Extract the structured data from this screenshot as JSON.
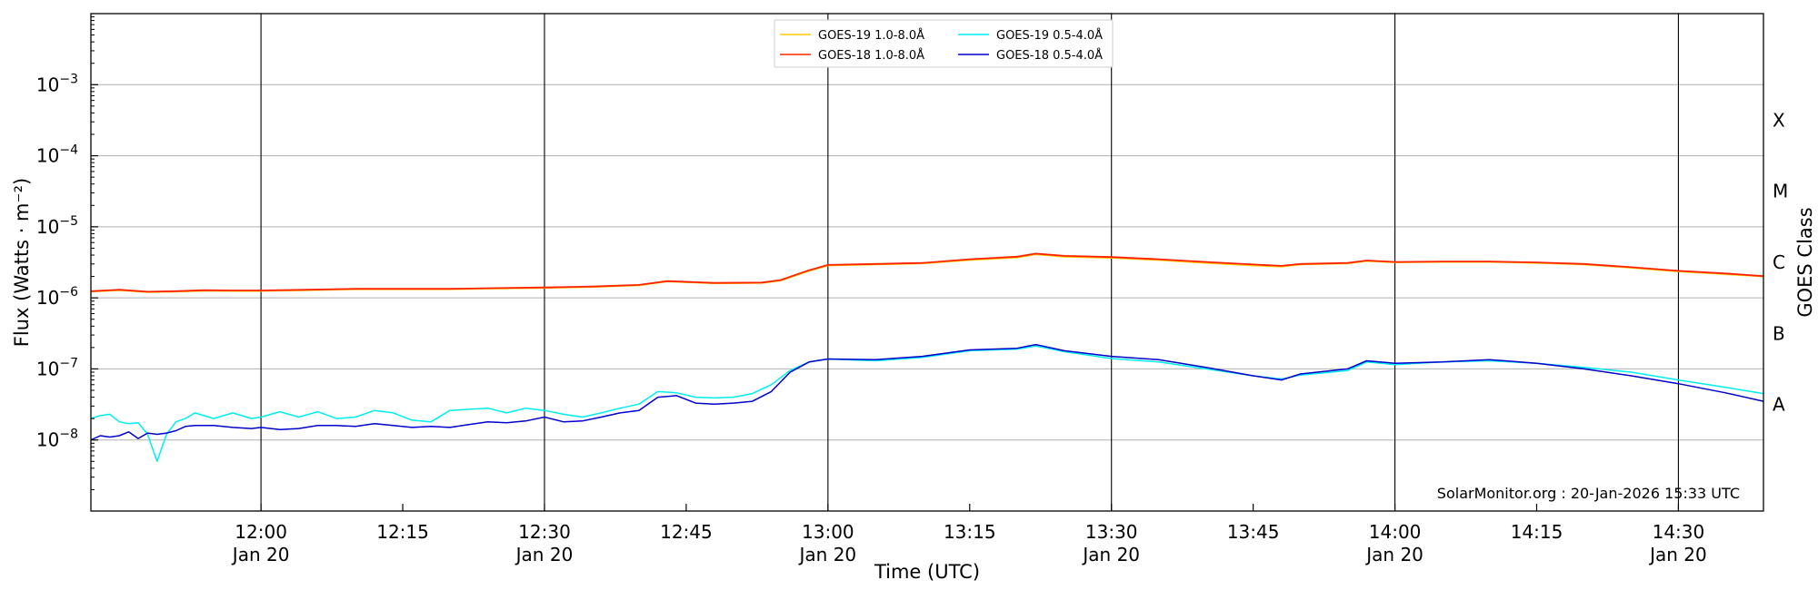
{
  "chart_data": {
    "type": "line",
    "xlabel": "Time (UTC)",
    "ylabel": "Flux (Watts · m⁻²)",
    "y2label": "GOES Class",
    "y_scale": "log",
    "ylim": [
      1e-09,
      0.01
    ],
    "xlim": [
      "2026-01-20 11:42",
      "2026-01-20 14:39"
    ],
    "grid": "horizontal",
    "legend_position": "top-center",
    "credit": "SolarMonitor.org : 20-Jan-2026 15:33 UTC",
    "y_ticks": [
      {
        "value": 1e-08,
        "base": "10",
        "exp": "−8"
      },
      {
        "value": 1e-07,
        "base": "10",
        "exp": "−7"
      },
      {
        "value": 1e-06,
        "base": "10",
        "exp": "−6"
      },
      {
        "value": 1e-05,
        "base": "10",
        "exp": "−5"
      },
      {
        "value": 0.0001,
        "base": "10",
        "exp": "−4"
      },
      {
        "value": 0.001,
        "base": "10",
        "exp": "−3"
      }
    ],
    "x_ticks": [
      {
        "time": "12:00",
        "line1": "12:00",
        "line2": "Jan 20",
        "major": true
      },
      {
        "time": "12:15",
        "line1": "12:15",
        "line2": "",
        "major": false
      },
      {
        "time": "12:30",
        "line1": "12:30",
        "line2": "Jan 20",
        "major": true
      },
      {
        "time": "12:45",
        "line1": "12:45",
        "line2": "",
        "major": false
      },
      {
        "time": "13:00",
        "line1": "13:00",
        "line2": "Jan 20",
        "major": true
      },
      {
        "time": "13:15",
        "line1": "13:15",
        "line2": "",
        "major": false
      },
      {
        "time": "13:30",
        "line1": "13:30",
        "line2": "Jan 20",
        "major": true
      },
      {
        "time": "13:45",
        "line1": "13:45",
        "line2": "",
        "major": false
      },
      {
        "time": "14:00",
        "line1": "14:00",
        "line2": "Jan 20",
        "major": true
      },
      {
        "time": "14:15",
        "line1": "14:15",
        "line2": "",
        "major": false
      },
      {
        "time": "14:30",
        "line1": "14:30",
        "line2": "Jan 20",
        "major": true
      }
    ],
    "goes_classes": [
      {
        "label": "X",
        "flux": 0.0001
      },
      {
        "label": "M",
        "flux": 1e-05
      },
      {
        "label": "C",
        "flux": 1e-06
      },
      {
        "label": "B",
        "flux": 1e-07
      },
      {
        "label": "A",
        "flux": 1e-08
      }
    ],
    "series": [
      {
        "name": "GOES-19 1.0-8.0Å",
        "color": "#ffcc00",
        "x": [
          "11:42",
          "11:45",
          "11:48",
          "11:51",
          "11:54",
          "11:57",
          "12:00",
          "12:05",
          "12:10",
          "12:15",
          "12:20",
          "12:25",
          "12:30",
          "12:35",
          "12:40",
          "12:43",
          "12:48",
          "12:53",
          "12:55",
          "12:58",
          "13:00",
          "13:05",
          "13:10",
          "13:15",
          "13:20",
          "13:22",
          "13:25",
          "13:30",
          "13:35",
          "13:40",
          "13:45",
          "13:48",
          "13:50",
          "13:55",
          "13:57",
          "14:00",
          "14:05",
          "14:10",
          "14:15",
          "14:20",
          "14:25",
          "14:30",
          "14:35",
          "14:39"
        ],
        "y": [
          1.22e-06,
          1.28e-06,
          1.2e-06,
          1.22e-06,
          1.26e-06,
          1.25e-06,
          1.25e-06,
          1.28e-06,
          1.32e-06,
          1.32e-06,
          1.32e-06,
          1.35e-06,
          1.38e-06,
          1.42e-06,
          1.5e-06,
          1.7e-06,
          1.6e-06,
          1.62e-06,
          1.75e-06,
          2.4e-06,
          2.85e-06,
          2.95e-06,
          3.05e-06,
          3.4e-06,
          3.7e-06,
          4.1e-06,
          3.8e-06,
          3.65e-06,
          3.4e-06,
          3.1e-06,
          2.85e-06,
          2.75e-06,
          2.95e-06,
          3.05e-06,
          3.3e-06,
          3.15e-06,
          3.2e-06,
          3.2e-06,
          3.1e-06,
          2.95e-06,
          2.65e-06,
          2.35e-06,
          2.15e-06,
          2e-06
        ]
      },
      {
        "name": "GOES-18 1.0-8.0Å",
        "color": "#ff2200",
        "x": [
          "11:42",
          "11:45",
          "11:48",
          "11:51",
          "11:54",
          "11:57",
          "12:00",
          "12:05",
          "12:10",
          "12:15",
          "12:20",
          "12:25",
          "12:30",
          "12:35",
          "12:40",
          "12:43",
          "12:48",
          "12:53",
          "12:55",
          "12:58",
          "13:00",
          "13:05",
          "13:10",
          "13:15",
          "13:20",
          "13:22",
          "13:25",
          "13:30",
          "13:35",
          "13:40",
          "13:45",
          "13:48",
          "13:50",
          "13:55",
          "13:57",
          "14:00",
          "14:05",
          "14:10",
          "14:15",
          "14:20",
          "14:25",
          "14:30",
          "14:35",
          "14:39"
        ],
        "y": [
          1.24e-06,
          1.3e-06,
          1.22e-06,
          1.24e-06,
          1.28e-06,
          1.27e-06,
          1.27e-06,
          1.3e-06,
          1.34e-06,
          1.34e-06,
          1.34e-06,
          1.37e-06,
          1.4e-06,
          1.44e-06,
          1.52e-06,
          1.72e-06,
          1.62e-06,
          1.64e-06,
          1.78e-06,
          2.45e-06,
          2.9e-06,
          3e-06,
          3.1e-06,
          3.5e-06,
          3.8e-06,
          4.2e-06,
          3.9e-06,
          3.75e-06,
          3.5e-06,
          3.2e-06,
          2.95e-06,
          2.82e-06,
          3e-06,
          3.1e-06,
          3.35e-06,
          3.2e-06,
          3.25e-06,
          3.25e-06,
          3.15e-06,
          3e-06,
          2.7e-06,
          2.4e-06,
          2.2e-06,
          2.02e-06
        ]
      },
      {
        "name": "GOES-19 0.5-4.0Å",
        "color": "#00eeee",
        "x": [
          "11:42",
          "11:43",
          "11:44",
          "11:45",
          "11:46",
          "11:47",
          "11:48",
          "11:49",
          "11:50",
          "11:51",
          "11:52",
          "11:53",
          "11:55",
          "11:57",
          "11:59",
          "12:00",
          "12:02",
          "12:04",
          "12:06",
          "12:08",
          "12:10",
          "12:12",
          "12:14",
          "12:16",
          "12:18",
          "12:20",
          "12:22",
          "12:24",
          "12:26",
          "12:28",
          "12:30",
          "12:32",
          "12:34",
          "12:36",
          "12:38",
          "12:40",
          "12:42",
          "12:44",
          "12:46",
          "12:48",
          "12:50",
          "12:52",
          "12:54",
          "12:56",
          "12:58",
          "13:00",
          "13:05",
          "13:10",
          "13:15",
          "13:20",
          "13:22",
          "13:25",
          "13:30",
          "13:35",
          "13:40",
          "13:45",
          "13:48",
          "13:50",
          "13:55",
          "13:57",
          "14:00",
          "14:05",
          "14:10",
          "14:15",
          "14:20",
          "14:25",
          "14:30",
          "14:35",
          "14:39"
        ],
        "y": [
          2e-08,
          2.2e-08,
          2.3e-08,
          1.8e-08,
          1.7e-08,
          1.75e-08,
          1.2e-08,
          5e-09,
          1.2e-08,
          1.8e-08,
          2e-08,
          2.4e-08,
          2e-08,
          2.4e-08,
          2e-08,
          2.1e-08,
          2.5e-08,
          2.1e-08,
          2.5e-08,
          2e-08,
          2.1e-08,
          2.6e-08,
          2.4e-08,
          1.9e-08,
          1.8e-08,
          2.6e-08,
          2.7e-08,
          2.8e-08,
          2.4e-08,
          2.8e-08,
          2.6e-08,
          2.3e-08,
          2.1e-08,
          2.4e-08,
          2.8e-08,
          3.2e-08,
          4.8e-08,
          4.6e-08,
          4e-08,
          3.9e-08,
          4e-08,
          4.5e-08,
          6e-08,
          9.5e-08,
          1.25e-07,
          1.38e-07,
          1.3e-07,
          1.45e-07,
          1.8e-07,
          1.9e-07,
          2.1e-07,
          1.75e-07,
          1.4e-07,
          1.25e-07,
          1e-07,
          8e-08,
          7.2e-08,
          8.2e-08,
          9.5e-08,
          1.25e-07,
          1.15e-07,
          1.25e-07,
          1.3e-07,
          1.2e-07,
          1.05e-07,
          9e-08,
          7e-08,
          5.5e-08,
          4.5e-08
        ]
      },
      {
        "name": "GOES-18 0.5-4.0Å",
        "color": "#0000cc",
        "x": [
          "11:42",
          "11:43",
          "11:44",
          "11:45",
          "11:46",
          "11:47",
          "11:48",
          "11:49",
          "11:50",
          "11:51",
          "11:52",
          "11:53",
          "11:55",
          "11:57",
          "11:59",
          "12:00",
          "12:02",
          "12:04",
          "12:06",
          "12:08",
          "12:10",
          "12:12",
          "12:14",
          "12:16",
          "12:18",
          "12:20",
          "12:22",
          "12:24",
          "12:26",
          "12:28",
          "12:30",
          "12:32",
          "12:34",
          "12:36",
          "12:38",
          "12:40",
          "12:42",
          "12:44",
          "12:46",
          "12:48",
          "12:50",
          "12:52",
          "12:54",
          "12:56",
          "12:58",
          "13:00",
          "13:05",
          "13:10",
          "13:15",
          "13:20",
          "13:22",
          "13:25",
          "13:30",
          "13:35",
          "13:40",
          "13:45",
          "13:48",
          "13:50",
          "13:55",
          "13:57",
          "14:00",
          "14:05",
          "14:10",
          "14:15",
          "14:20",
          "14:25",
          "14:30",
          "14:35",
          "14:39"
        ],
        "y": [
          1e-08,
          1.15e-08,
          1.1e-08,
          1.15e-08,
          1.3e-08,
          1.05e-08,
          1.25e-08,
          1.2e-08,
          1.25e-08,
          1.35e-08,
          1.55e-08,
          1.6e-08,
          1.6e-08,
          1.5e-08,
          1.45e-08,
          1.5e-08,
          1.4e-08,
          1.45e-08,
          1.6e-08,
          1.6e-08,
          1.55e-08,
          1.7e-08,
          1.6e-08,
          1.5e-08,
          1.55e-08,
          1.5e-08,
          1.65e-08,
          1.8e-08,
          1.75e-08,
          1.85e-08,
          2.1e-08,
          1.8e-08,
          1.85e-08,
          2.1e-08,
          2.4e-08,
          2.6e-08,
          4e-08,
          4.2e-08,
          3.3e-08,
          3.2e-08,
          3.3e-08,
          3.5e-08,
          4.8e-08,
          9e-08,
          1.25e-07,
          1.38e-07,
          1.35e-07,
          1.5e-07,
          1.85e-07,
          1.95e-07,
          2.2e-07,
          1.8e-07,
          1.5e-07,
          1.35e-07,
          1.05e-07,
          8e-08,
          7e-08,
          8.5e-08,
          1e-07,
          1.3e-07,
          1.2e-07,
          1.25e-07,
          1.35e-07,
          1.2e-07,
          1e-07,
          8e-08,
          6.2e-08,
          4.6e-08,
          3.5e-08
        ]
      }
    ]
  }
}
